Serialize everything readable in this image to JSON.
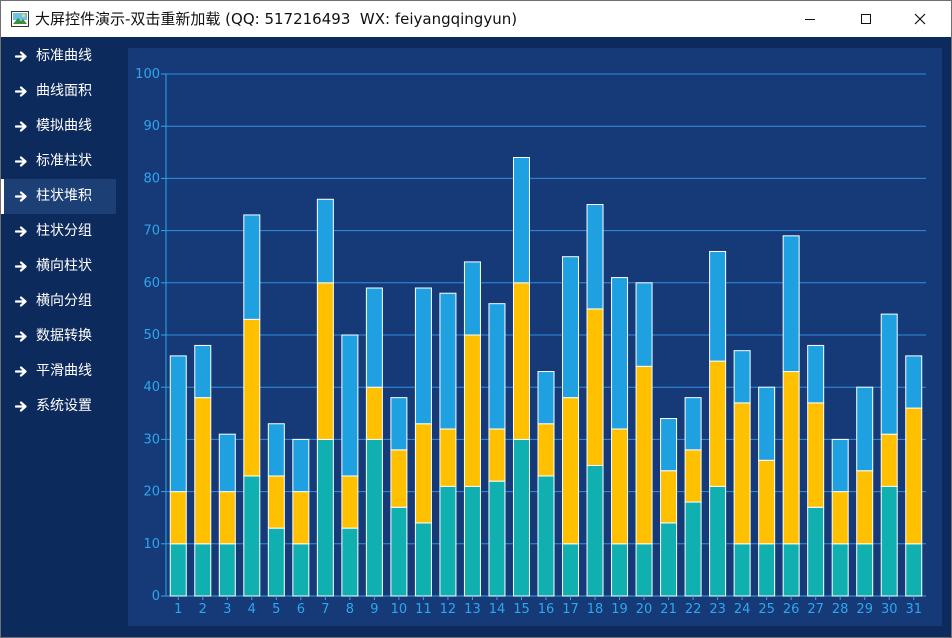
{
  "window": {
    "title": "大屏控件演示-双击重新加载 (QQ: 517216493  WX: feiyangqingyun)",
    "icons": {
      "app": "app-landscape-icon",
      "minimize": "minimize-icon",
      "maximize": "maximize-icon",
      "close": "close-icon"
    }
  },
  "sidebar": {
    "icon": "arrow-right-icon",
    "selected_index": 4,
    "items": [
      {
        "label": "标准曲线"
      },
      {
        "label": "曲线面积"
      },
      {
        "label": "模拟曲线"
      },
      {
        "label": "标准柱状"
      },
      {
        "label": "柱状堆积"
      },
      {
        "label": "柱状分组"
      },
      {
        "label": "横向柱状"
      },
      {
        "label": "横向分组"
      },
      {
        "label": "数据转换"
      },
      {
        "label": "平滑曲线"
      },
      {
        "label": "系统设置"
      }
    ]
  },
  "colors": {
    "window_bg": "#0d2a5c",
    "panel_bg": "#163a78",
    "sidebar_active": "#1c3f76",
    "axis": "#2fa6ec",
    "grid": "#2f8fe0"
  },
  "chart_data": {
    "type": "bar",
    "stacked": true,
    "title": "",
    "xlabel": "",
    "ylabel": "",
    "ylim": [
      0,
      100
    ],
    "yticks": [
      0,
      10,
      20,
      30,
      40,
      50,
      60,
      70,
      80,
      90,
      100
    ],
    "grid": true,
    "legend": "none",
    "categories": [
      "1",
      "2",
      "3",
      "4",
      "5",
      "6",
      "7",
      "8",
      "9",
      "10",
      "11",
      "12",
      "13",
      "14",
      "15",
      "16",
      "17",
      "18",
      "19",
      "20",
      "21",
      "22",
      "23",
      "24",
      "25",
      "26",
      "27",
      "28",
      "29",
      "30",
      "31"
    ],
    "series": [
      {
        "color": "#10b0b0",
        "values": [
          10,
          10,
          10,
          23,
          13,
          10,
          30,
          13,
          30,
          17,
          14,
          21,
          21,
          22,
          30,
          23,
          10,
          25,
          10,
          10,
          14,
          18,
          21,
          10,
          10,
          10,
          17,
          10,
          10,
          21,
          10
        ]
      },
      {
        "color": "#ffc000",
        "values": [
          10,
          28,
          10,
          30,
          10,
          10,
          30,
          10,
          10,
          11,
          19,
          11,
          29,
          10,
          30,
          10,
          28,
          30,
          22,
          34,
          10,
          10,
          24,
          27,
          16,
          33,
          20,
          10,
          14,
          10,
          26
        ]
      },
      {
        "color": "#1fa0e0",
        "values": [
          26,
          10,
          11,
          20,
          10,
          10,
          16,
          27,
          19,
          10,
          26,
          26,
          14,
          24,
          24,
          10,
          27,
          20,
          29,
          16,
          10,
          10,
          21,
          10,
          14,
          26,
          11,
          10,
          16,
          23,
          10
        ]
      }
    ]
  }
}
